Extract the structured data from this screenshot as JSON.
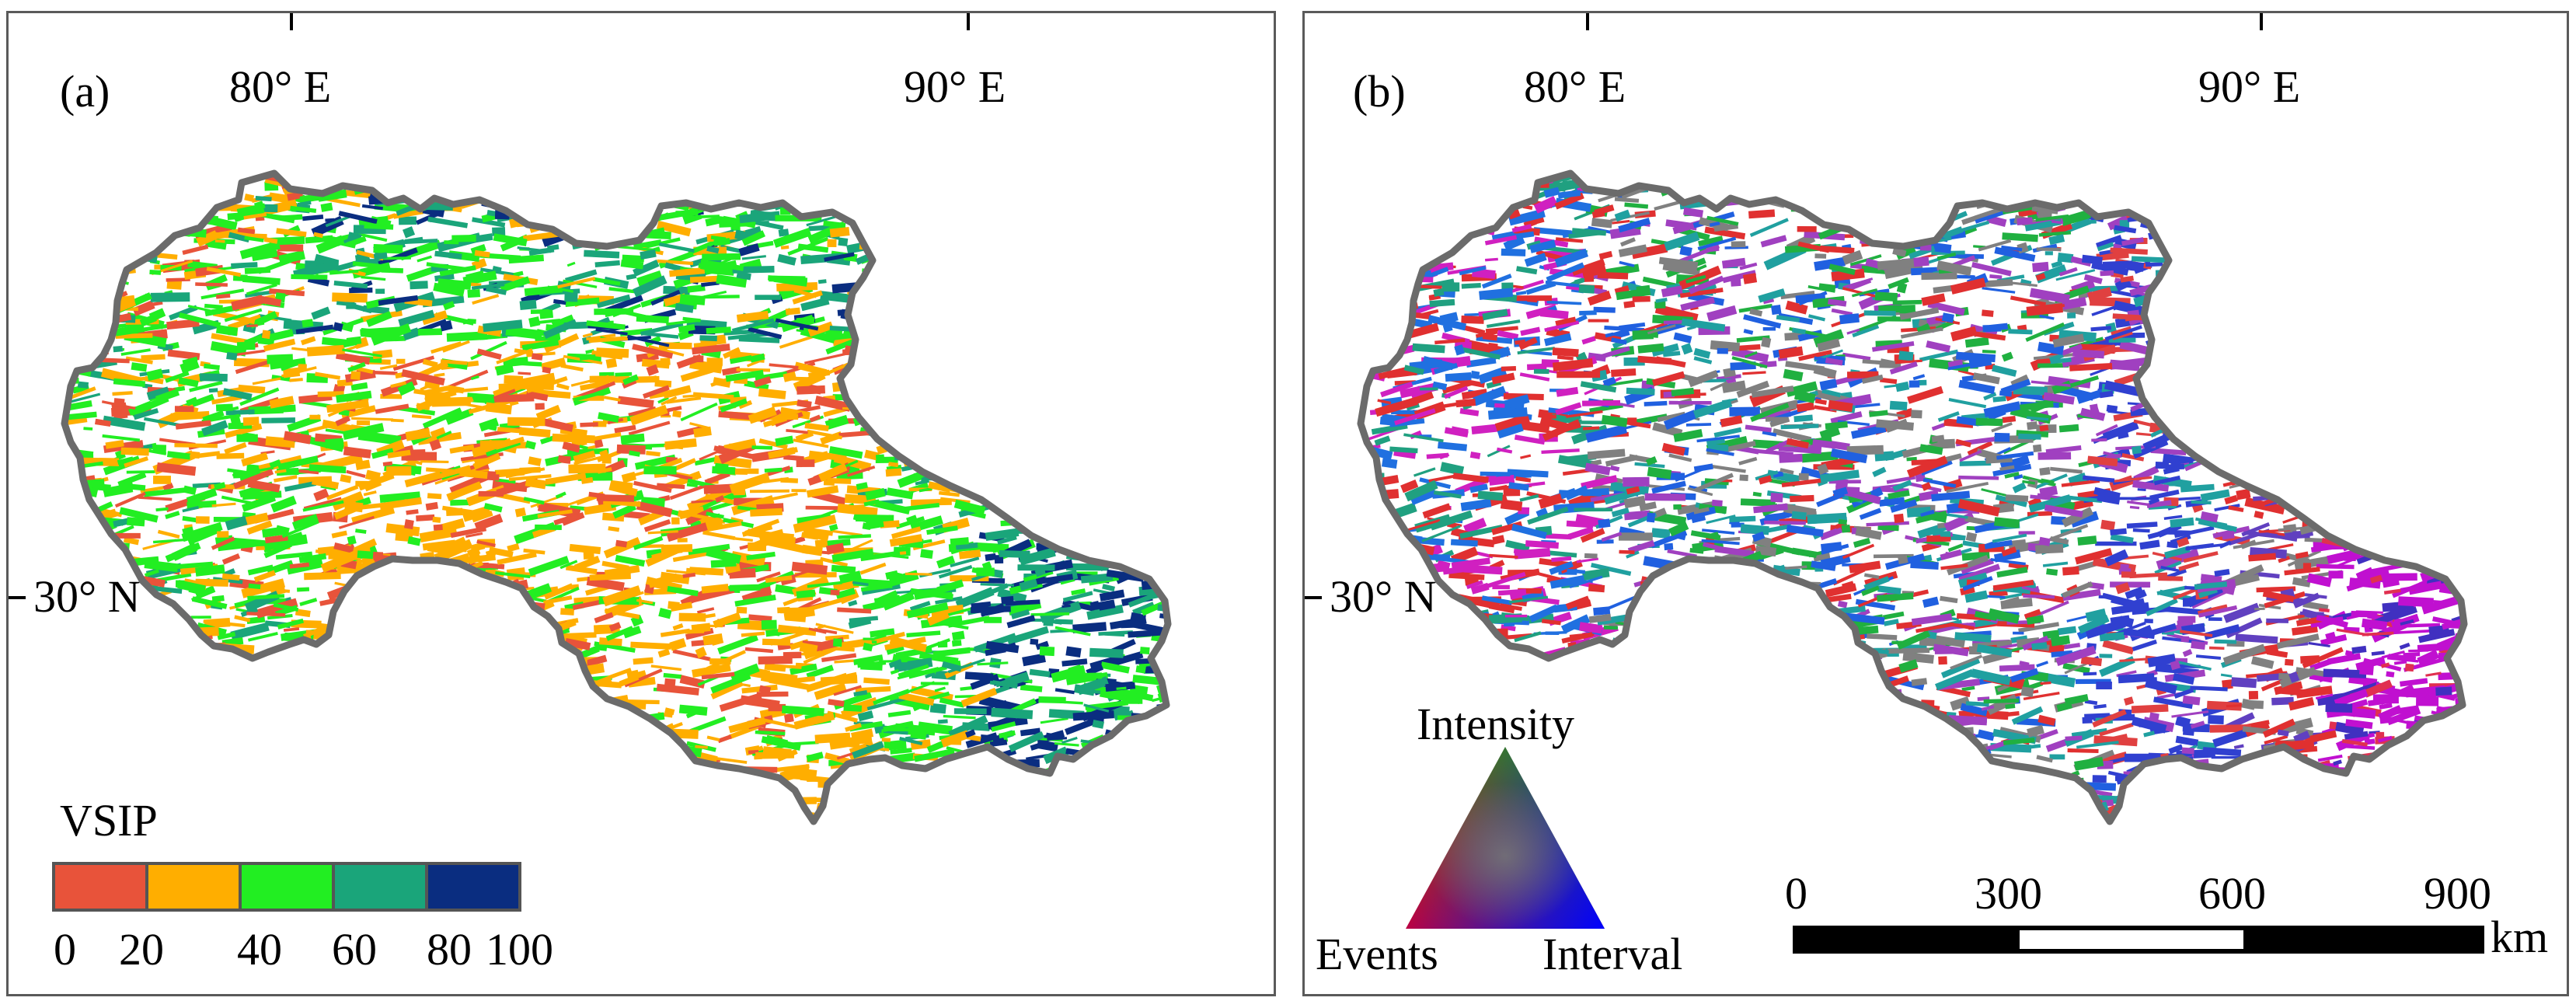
{
  "panels": [
    {
      "label": "(a)",
      "lon_labels": [
        "80° E",
        "90° E"
      ],
      "lat_labels": [
        "30° N"
      ],
      "legend": {
        "title": "VSIP",
        "ticks": [
          "0",
          "20",
          "40",
          "60",
          "80",
          "100"
        ],
        "colors": [
          "#e8533a",
          "#ffae00",
          "#22ee22",
          "#1aa57a",
          "#0a2d80"
        ]
      }
    },
    {
      "label": "(b)",
      "lon_labels": [
        "80° E",
        "90° E"
      ],
      "lat_labels": [
        "30° N"
      ],
      "ternary_legend": {
        "top": "Intensity",
        "left": "Events",
        "right": "Interval",
        "colors": {
          "top": "#00c000",
          "left": "#ff0000",
          "right": "#0000ff"
        }
      },
      "scale_bar": {
        "ticks": [
          "0",
          "300",
          "600",
          "900"
        ],
        "unit": "km"
      }
    }
  ]
}
